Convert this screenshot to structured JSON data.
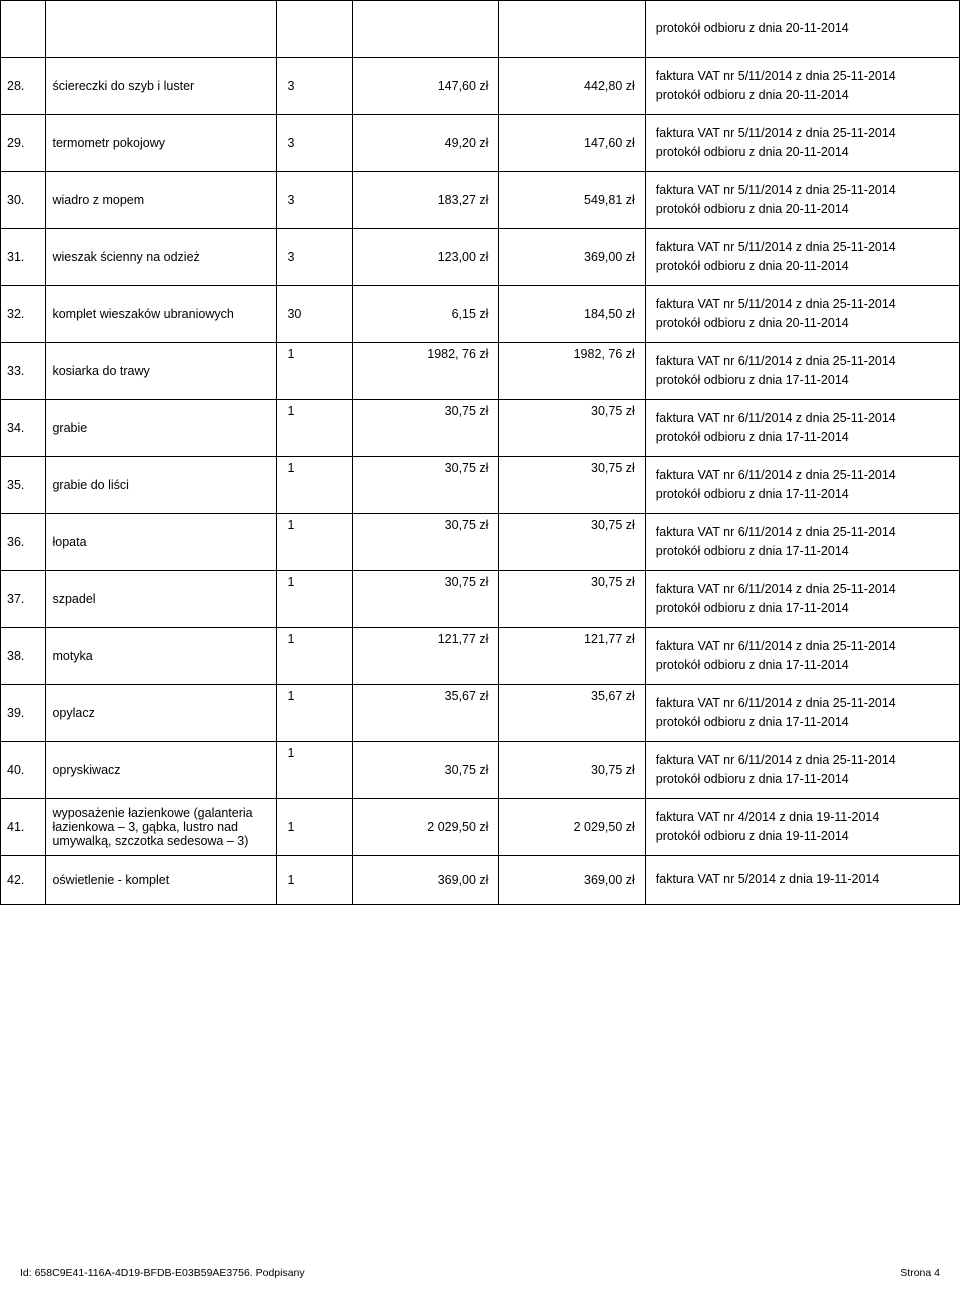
{
  "rows": [
    {
      "num": "",
      "name": "",
      "qty": "",
      "price": "",
      "total": "",
      "desc": "protokół odbioru z dnia 20-11-2014"
    },
    {
      "num": "28.",
      "name": "ściereczki do szyb i luster",
      "qty": "3",
      "price": "147,60 zł",
      "total": "442,80 zł",
      "desc": "faktura VAT nr 5/11/2014 z dnia 25-11-2014\nprotokół odbioru z dnia 20-11-2014"
    },
    {
      "num": "29.",
      "name": "termometr pokojowy",
      "qty": "3",
      "price": "49,20 zł",
      "total": "147,60 zł",
      "desc": "faktura VAT nr 5/11/2014 z dnia 25-11-2014\nprotokół odbioru z dnia 20-11-2014"
    },
    {
      "num": "30.",
      "name": "wiadro z mopem",
      "qty": "3",
      "price": "183,27 zł",
      "total": "549,81 zł",
      "desc": "faktura VAT nr 5/11/2014 z dnia 25-11-2014\nprotokół odbioru z dnia 20-11-2014"
    },
    {
      "num": "31.",
      "name": "wieszak ścienny na odzież",
      "qty": "3",
      "price": "123,00 zł",
      "total": "369,00 zł",
      "desc": "faktura VAT nr 5/11/2014 z dnia 25-11-2014\nprotokół odbioru z dnia 20-11-2014"
    },
    {
      "num": "32.",
      "name": "komplet wieszaków ubraniowych",
      "qty": "30",
      "price": "6,15 zł",
      "total": "184,50 zł",
      "desc": "faktura VAT nr 5/11/2014 z dnia 25-11-2014\nprotokół odbioru z dnia 20-11-2014"
    },
    {
      "num": "33.",
      "name": "kosiarka do trawy",
      "qty": "1",
      "price": "1982, 76 zł",
      "total": "1982, 76 zł",
      "desc": "faktura VAT nr 6/11/2014 z dnia 25-11-2014\nprotokół odbioru z dnia 17-11-2014",
      "valign": "top"
    },
    {
      "num": "34.",
      "name": "grabie",
      "qty": "1",
      "price": "30,75 zł",
      "total": "30,75 zł",
      "desc": "faktura VAT nr 6/11/2014 z dnia 25-11-2014\nprotokół odbioru z dnia 17-11-2014",
      "valign": "top"
    },
    {
      "num": "35.",
      "name": "grabie do liści",
      "qty": "1",
      "price": "30,75 zł",
      "total": "30,75 zł",
      "desc": "faktura VAT nr 6/11/2014 z dnia 25-11-2014\nprotokół odbioru z dnia 17-11-2014",
      "valign": "top"
    },
    {
      "num": "36.",
      "name": "łopata",
      "qty": "1",
      "price": "30,75 zł",
      "total": "30,75 zł",
      "desc": "faktura VAT nr 6/11/2014 z dnia 25-11-2014\nprotokół odbioru z dnia 17-11-2014",
      "valign": "top"
    },
    {
      "num": "37.",
      "name": "szpadel",
      "qty": "1",
      "price": "30,75 zł",
      "total": "30,75 zł",
      "desc": "faktura VAT nr 6/11/2014 z dnia 25-11-2014\nprotokół odbioru z dnia 17-11-2014",
      "valign": "top"
    },
    {
      "num": "38.",
      "name": "motyka",
      "qty": "1",
      "price": "121,77 zł",
      "total": "121,77 zł",
      "desc": "faktura VAT nr 6/11/2014 z dnia 25-11-2014\nprotokół odbioru z dnia 17-11-2014",
      "valign": "top"
    },
    {
      "num": "39.",
      "name": "opylacz",
      "qty": "1",
      "price": "35,67 zł",
      "total": "35,67 zł",
      "desc": "faktura VAT nr 6/11/2014 z dnia 25-11-2014\nprotokół odbioru z dnia 17-11-2014",
      "valign": "top"
    },
    {
      "num": "40.",
      "name": "opryskiwacz",
      "qty": "1",
      "price": "30,75 zł",
      "total": "30,75 zł",
      "desc": "faktura VAT nr 6/11/2014 z dnia 25-11-2014\nprotokół odbioru z dnia 17-11-2014",
      "qtyTop": true
    },
    {
      "num": "41.",
      "name": "wyposażenie łazienkowe (galanteria łazienkowa – 3, gąbka, lustro nad umywalką, szczotka sedesowa – 3)",
      "qty": "1",
      "price": "2 029,50 zł",
      "total": "2 029,50 zł",
      "desc": "faktura VAT nr 4/2014 z dnia 19-11-2014\nprotokół odbioru z dnia 19-11-2014"
    },
    {
      "num": "42.",
      "name": "oświetlenie - komplet",
      "qty": "1",
      "price": "369,00 zł",
      "total": "369,00 zł",
      "desc": "faktura VAT nr 5/2014 z dnia 19-11-2014",
      "single": true
    }
  ],
  "footer": {
    "left": "Id: 658C9E41-116A-4D19-BFDB-E03B59AE3756. Podpisany",
    "right": "Strona 4"
  },
  "style": {
    "font_family": "Arial, sans-serif",
    "font_size_pt": 9.5,
    "border_color": "#000000",
    "background_color": "#ffffff",
    "text_color": "#000000",
    "col_widths_pct": [
      4,
      25,
      7,
      15,
      15,
      34
    ]
  }
}
